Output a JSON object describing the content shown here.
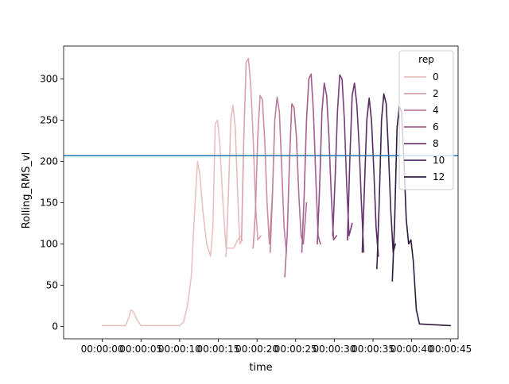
{
  "chart_data": {
    "type": "line",
    "title": "",
    "xlabel": "time",
    "ylabel": "Rolling_RMS_vl",
    "xlim": [
      -5,
      46
    ],
    "ylim": [
      -15,
      340
    ],
    "x_unit": "seconds",
    "x_tick_values": [
      0,
      5,
      10,
      15,
      20,
      25,
      30,
      35,
      40,
      45
    ],
    "x_tick_labels": [
      "00:00:00",
      "00:00:05",
      "00:00:10",
      "00:00:15",
      "00:00:20",
      "00:00:25",
      "00:00:30",
      "00:00:35",
      "00:00:40",
      "00:00:45"
    ],
    "y_ticks": [
      0,
      50,
      100,
      150,
      200,
      250,
      300
    ],
    "grid": false,
    "legend": {
      "title": "rep",
      "placement": "top-right",
      "entries": [
        {
          "label": "0",
          "color": "#e6c3c1"
        },
        {
          "label": "2",
          "color": "#d6a2ad"
        },
        {
          "label": "4",
          "color": "#c07d9d"
        },
        {
          "label": "6",
          "color": "#a25f8f"
        },
        {
          "label": "8",
          "color": "#7a3f7c"
        },
        {
          "label": "10",
          "color": "#552b5f"
        },
        {
          "label": "12",
          "color": "#2d1b3e"
        }
      ]
    },
    "hline": {
      "y": 207,
      "color": "#1f77b4"
    },
    "series": [
      {
        "rep": 0,
        "color": "#e6c3c1",
        "x": [
          0,
          3,
          3.4,
          3.7,
          4,
          4.5,
          5,
          10,
          10.5,
          11,
          11.5,
          12,
          12.3,
          12.6,
          13,
          13.5,
          14,
          14.3,
          14.6,
          14.9,
          15.2,
          15.6,
          16,
          17,
          17.5,
          18
        ],
        "y": [
          1,
          1,
          10,
          20,
          18,
          8,
          1,
          1,
          5,
          25,
          60,
          150,
          200,
          185,
          140,
          100,
          85,
          120,
          245,
          250,
          220,
          150,
          95,
          95,
          105,
          110
        ]
      },
      {
        "rep": 1,
        "color": "#e4bdbd",
        "x": [
          16,
          16.3,
          16.6,
          16.9,
          17.2,
          17.5,
          17.8,
          18.1
        ],
        "y": [
          85,
          160,
          250,
          268,
          240,
          160,
          100,
          105
        ]
      },
      {
        "rep": 2,
        "color": "#d6a2ad",
        "x": [
          18,
          18.3,
          18.6,
          18.9,
          19.2,
          19.5,
          19.8,
          20.1,
          20.5
        ],
        "y": [
          105,
          230,
          320,
          325,
          290,
          230,
          150,
          105,
          110
        ]
      },
      {
        "rep": 3,
        "color": "#cc8fa6",
        "x": [
          19.5,
          19.8,
          20.1,
          20.4,
          20.7,
          21,
          21.3,
          21.6,
          22
        ],
        "y": [
          95,
          140,
          230,
          280,
          275,
          225,
          150,
          100,
          160
        ]
      },
      {
        "rep": 4,
        "color": "#c07d9d",
        "x": [
          21.7,
          22,
          22.3,
          22.6,
          22.9,
          23.2,
          23.5,
          23.8
        ],
        "y": [
          90,
          160,
          250,
          278,
          260,
          190,
          120,
          90
        ]
      },
      {
        "rep": 5,
        "color": "#b16e96",
        "x": [
          23.6,
          23.9,
          24.2,
          24.5,
          24.8,
          25.1,
          25.4,
          25.7,
          26,
          26.4
        ],
        "y": [
          60,
          110,
          200,
          270,
          265,
          230,
          160,
          110,
          100,
          150
        ]
      },
      {
        "rep": 6,
        "color": "#a25f8f",
        "x": [
          25.8,
          26.1,
          26.4,
          26.7,
          27,
          27.3,
          27.6,
          27.9,
          28.2
        ],
        "y": [
          90,
          160,
          250,
          300,
          306,
          260,
          180,
          110,
          100
        ]
      },
      {
        "rep": 7,
        "color": "#8f4f86",
        "x": [
          27.8,
          28.1,
          28.4,
          28.7,
          29,
          29.3,
          29.6,
          29.9,
          30.3
        ],
        "y": [
          100,
          170,
          260,
          295,
          280,
          230,
          160,
          105,
          110
        ]
      },
      {
        "rep": 8,
        "color": "#7a3f7c",
        "x": [
          29.8,
          30.1,
          30.4,
          30.7,
          31,
          31.3,
          31.6,
          31.9,
          32.3
        ],
        "y": [
          110,
          180,
          260,
          305,
          300,
          250,
          170,
          110,
          125
        ]
      },
      {
        "rep": 9,
        "color": "#673570",
        "x": [
          31.7,
          32,
          32.3,
          32.6,
          32.9,
          33.2,
          33.5,
          33.8
        ],
        "y": [
          105,
          200,
          280,
          295,
          270,
          220,
          150,
          90
        ]
      },
      {
        "rep": 10,
        "color": "#552b5f",
        "x": [
          33.6,
          33.9,
          34.2,
          34.5,
          34.8,
          35.1,
          35.4,
          35.7
        ],
        "y": [
          90,
          170,
          250,
          277,
          250,
          190,
          120,
          85
        ]
      },
      {
        "rep": 11,
        "color": "#41234f",
        "x": [
          35.5,
          35.8,
          36.1,
          36.4,
          36.7,
          37,
          37.3,
          37.6,
          37.9
        ],
        "y": [
          70,
          150,
          250,
          282,
          270,
          210,
          140,
          90,
          100
        ]
      },
      {
        "rep": 12,
        "color": "#2d1b3e",
        "x": [
          37.5,
          37.8,
          38.1,
          38.4,
          38.7,
          39,
          39.3,
          39.6,
          39.9,
          40.2,
          40.6,
          41,
          45
        ],
        "y": [
          55,
          130,
          240,
          267,
          260,
          200,
          130,
          100,
          105,
          80,
          20,
          3,
          1
        ]
      }
    ]
  }
}
